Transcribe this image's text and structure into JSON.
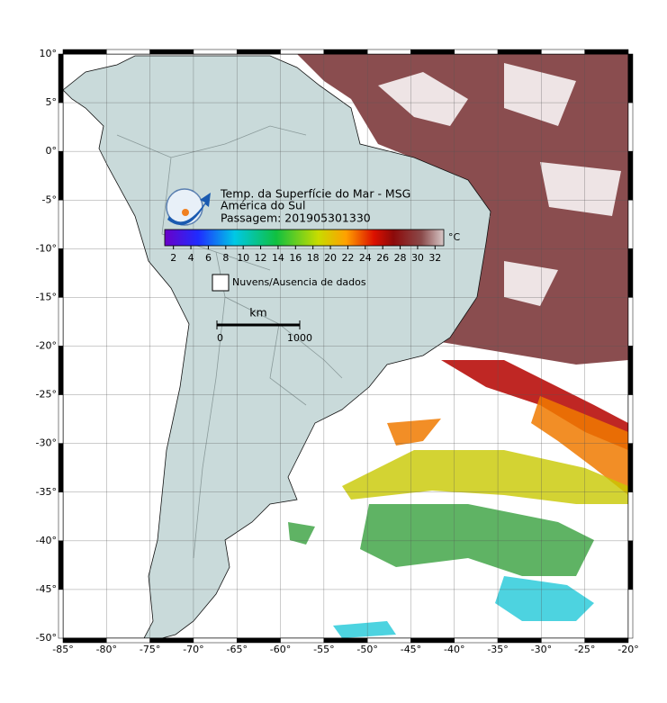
{
  "map": {
    "title": "Temp. da Superfície do Mar - MSG",
    "region": "América do Sul",
    "pass": "Passagem: 201905301330",
    "lonlim": [
      -85,
      -20
    ],
    "latlim": [
      -50,
      10
    ],
    "lon_ticks": [
      {
        "value": -85,
        "label": "-85°"
      },
      {
        "value": -80,
        "label": "-80°"
      },
      {
        "value": -75,
        "label": "-75°"
      },
      {
        "value": -70,
        "label": "-70°"
      },
      {
        "value": -65,
        "label": "-65°"
      },
      {
        "value": -60,
        "label": "-60°"
      },
      {
        "value": -55,
        "label": "-55°"
      },
      {
        "value": -50,
        "label": "-50°"
      },
      {
        "value": -45,
        "label": "-45°"
      },
      {
        "value": -40,
        "label": "-40°"
      },
      {
        "value": -35,
        "label": "-35°"
      },
      {
        "value": -30,
        "label": "-30°"
      },
      {
        "value": -25,
        "label": "-25°"
      },
      {
        "value": -20,
        "label": "-20°"
      }
    ],
    "lat_ticks": [
      {
        "value": 10,
        "label": "10°"
      },
      {
        "value": 5,
        "label": "5°"
      },
      {
        "value": 0,
        "label": "0°"
      },
      {
        "value": -5,
        "label": "-5°"
      },
      {
        "value": -10,
        "label": "-10°"
      },
      {
        "value": -15,
        "label": "-15°"
      },
      {
        "value": -20,
        "label": "-20°"
      },
      {
        "value": -25,
        "label": "-25°"
      },
      {
        "value": -30,
        "label": "-30°"
      },
      {
        "value": -35,
        "label": "-35°"
      },
      {
        "value": -40,
        "label": "-40°"
      },
      {
        "value": -45,
        "label": "-45°"
      },
      {
        "value": -50,
        "label": "-50°"
      }
    ],
    "colorbar": {
      "range": [
        1,
        33
      ],
      "ticks": [
        2,
        4,
        6,
        8,
        10,
        12,
        14,
        16,
        18,
        20,
        22,
        24,
        26,
        28,
        30,
        32
      ],
      "unit": "°C"
    },
    "legend": "Nuvens/Ausencia de dados",
    "scale": {
      "unit": "km",
      "ticks": [
        0,
        1000
      ]
    }
  }
}
